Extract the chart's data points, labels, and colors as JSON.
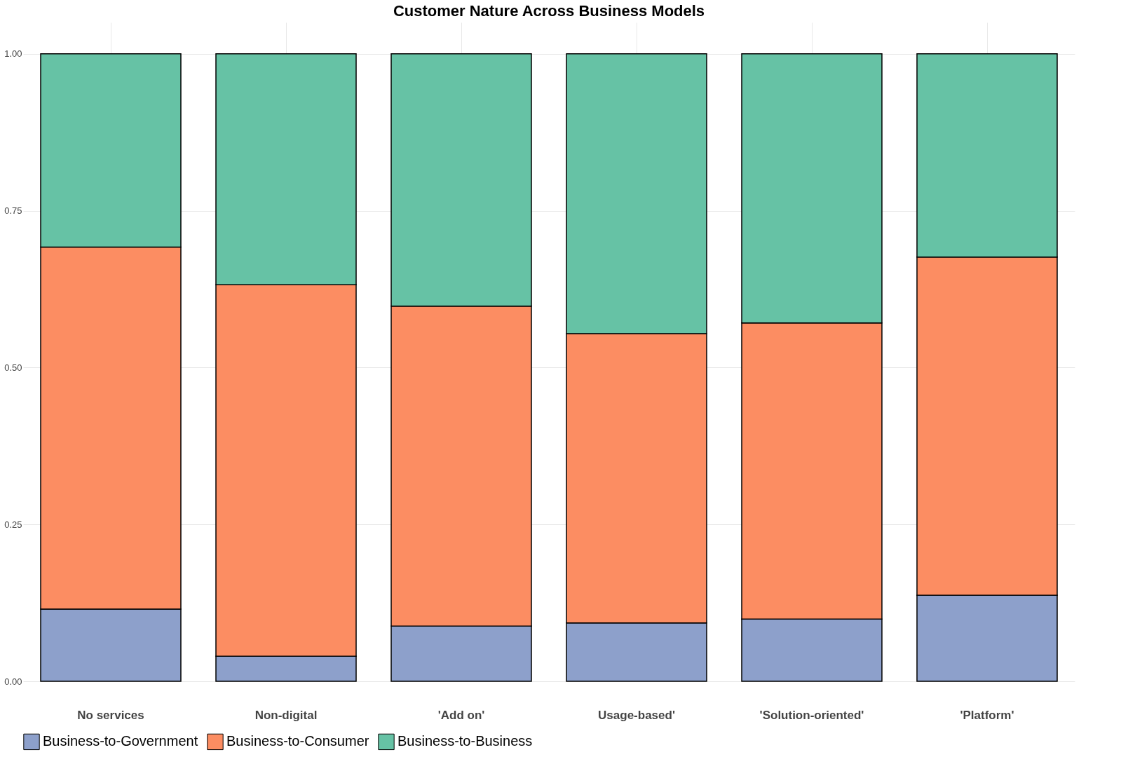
{
  "chart_data": {
    "type": "bar",
    "title": "Customer Nature Across Business Models",
    "categories": [
      "No services",
      "Non-digital",
      "'Add on'",
      "Usage-based'",
      "'Solution-oriented'",
      "'Platform'"
    ],
    "stacked": true,
    "series": [
      {
        "name": "Business-to-Government",
        "color": "#8da0cb",
        "values": [
          0.115,
          0.04,
          0.088,
          0.093,
          0.099,
          0.137
        ]
      },
      {
        "name": "Business-to-Consumer",
        "color": "#fc8d62",
        "values": [
          0.577,
          0.592,
          0.51,
          0.461,
          0.472,
          0.539
        ]
      },
      {
        "name": "Business-to-Business",
        "color": "#66c2a5",
        "values": [
          0.308,
          0.368,
          0.402,
          0.446,
          0.429,
          0.324
        ]
      }
    ],
    "ylim": [
      0,
      1.05
    ],
    "yticks": [
      {
        "value": 0,
        "label": "0.00"
      },
      {
        "value": 0.25,
        "label": "0.25"
      },
      {
        "value": 0.5,
        "label": "0.50"
      },
      {
        "value": 0.75,
        "label": "0.75"
      },
      {
        "value": 1,
        "label": "1.00"
      }
    ],
    "grid": true,
    "legend": "bottom"
  }
}
